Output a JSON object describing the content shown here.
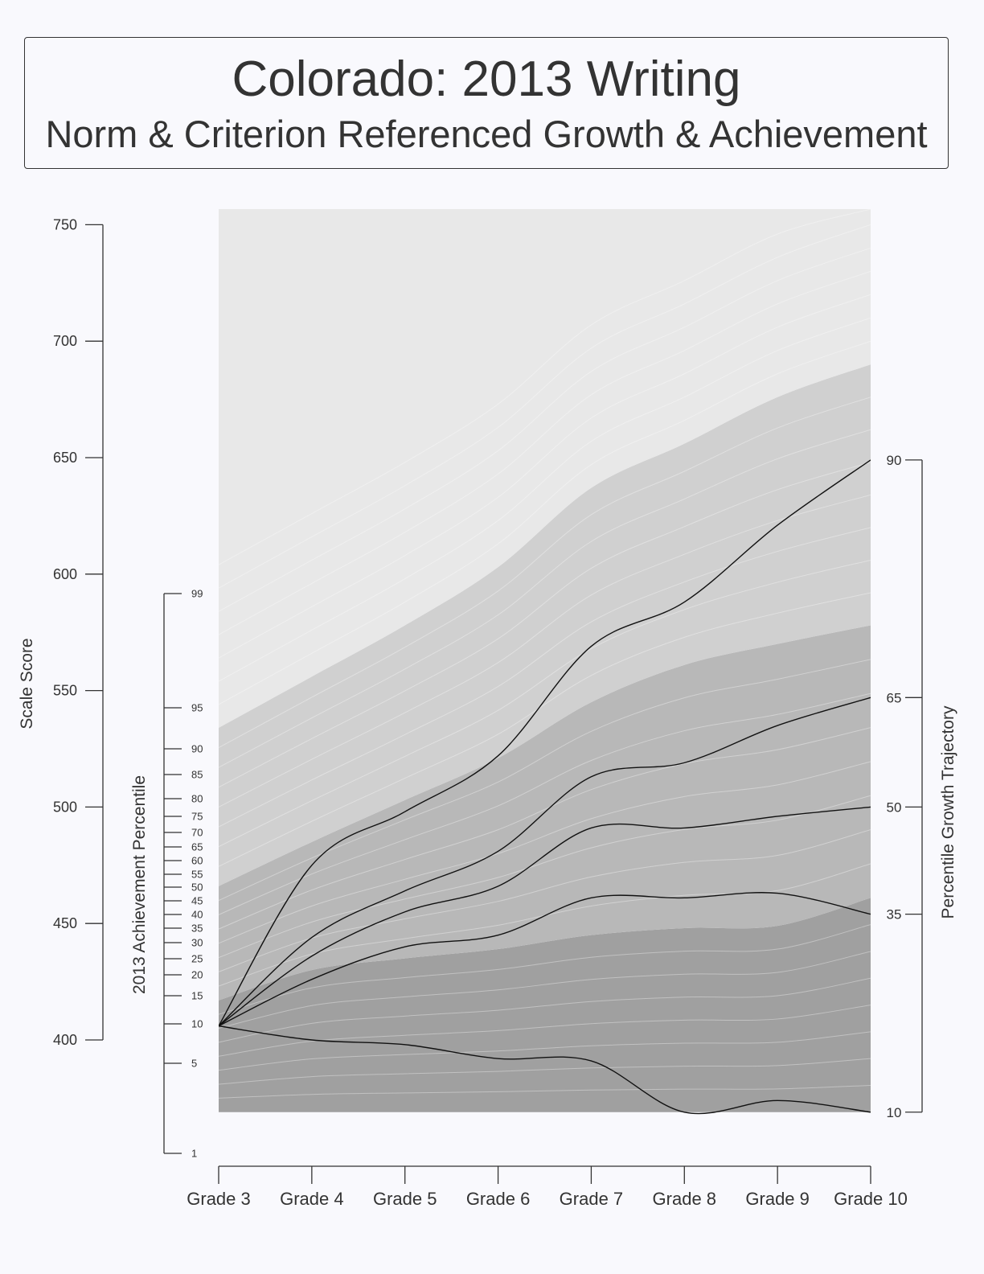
{
  "title": "Colorado: 2013 Writing",
  "subtitle": "Norm & Criterion Referenced Growth & Achievement",
  "chart_data": {
    "type": "line",
    "x": [
      "Grade 3",
      "Grade 4",
      "Grade 5",
      "Grade 6",
      "Grade 7",
      "Grade 8",
      "Grade 9",
      "Grade 10"
    ],
    "ylabel_left": "Scale Score",
    "ylabel_achievement": "2013 Achievement Percentile",
    "ylabel_right": "Percentile Growth Trajectory",
    "ylim": [
      369,
      775
    ],
    "scale_score_ticks": [
      400,
      450,
      500,
      550,
      600,
      650,
      700,
      750
    ],
    "achievement_percentiles": [
      {
        "label": "1",
        "score": 390
      },
      {
        "label": "5",
        "score": 410
      },
      {
        "label": "10",
        "score": 407
      },
      {
        "label": "15",
        "score": 419
      },
      {
        "label": "20",
        "score": 428
      },
      {
        "label": "25",
        "score": 435
      },
      {
        "label": "30",
        "score": 442
      },
      {
        "label": "35",
        "score": 448
      },
      {
        "label": "40",
        "score": 454
      },
      {
        "label": "45",
        "score": 460
      },
      {
        "label": "50",
        "score": 466
      },
      {
        "label": "55",
        "score": 471
      },
      {
        "label": "60",
        "score": 477
      },
      {
        "label": "65",
        "score": 484
      },
      {
        "label": "70",
        "score": 490
      },
      {
        "label": "75",
        "score": 497
      },
      {
        "label": "80",
        "score": 505
      },
      {
        "label": "85",
        "score": 515
      },
      {
        "label": "90",
        "score": 526
      },
      {
        "label": "95",
        "score": 544
      },
      {
        "label": "99",
        "score": 593
      }
    ],
    "series": [
      {
        "name": "90",
        "values": [
          406,
          475,
          498,
          522,
          569,
          588,
          621,
          649
        ]
      },
      {
        "name": "65",
        "values": [
          406,
          444,
          464,
          481,
          513,
          519,
          535,
          547
        ]
      },
      {
        "name": "50",
        "values": [
          406,
          436,
          455,
          466,
          491,
          491,
          496,
          500
        ]
      },
      {
        "name": "35",
        "values": [
          406,
          426,
          440,
          445,
          461,
          461,
          463,
          454
        ]
      },
      {
        "name": "10",
        "values": [
          406,
          400,
          398,
          392,
          391,
          369,
          374,
          369
        ]
      }
    ],
    "performance_level_bands": [
      {
        "lower": [
          369,
          369,
          369,
          369,
          369,
          369,
          369,
          369
        ],
        "upper": [
          417,
          430,
          435,
          439,
          445,
          448,
          449,
          461
        ],
        "color": "#a0a0a0"
      },
      {
        "lower": [
          417,
          430,
          435,
          439,
          445,
          448,
          449,
          461
        ],
        "upper": [
          466,
          485,
          503,
          521,
          545,
          561,
          570,
          578
        ],
        "color": "#b8b8b8"
      },
      {
        "lower": [
          466,
          485,
          503,
          521,
          545,
          561,
          570,
          578
        ],
        "upper": [
          534,
          556,
          578,
          603,
          637,
          656,
          676,
          690
        ],
        "color": "#d0d0d0"
      },
      {
        "lower": [
          534,
          556,
          578,
          603,
          637,
          656,
          676,
          690
        ],
        "upper": [
          775,
          775,
          775,
          775,
          775,
          775,
          775,
          775
        ],
        "color": "#e8e8e8"
      }
    ]
  }
}
